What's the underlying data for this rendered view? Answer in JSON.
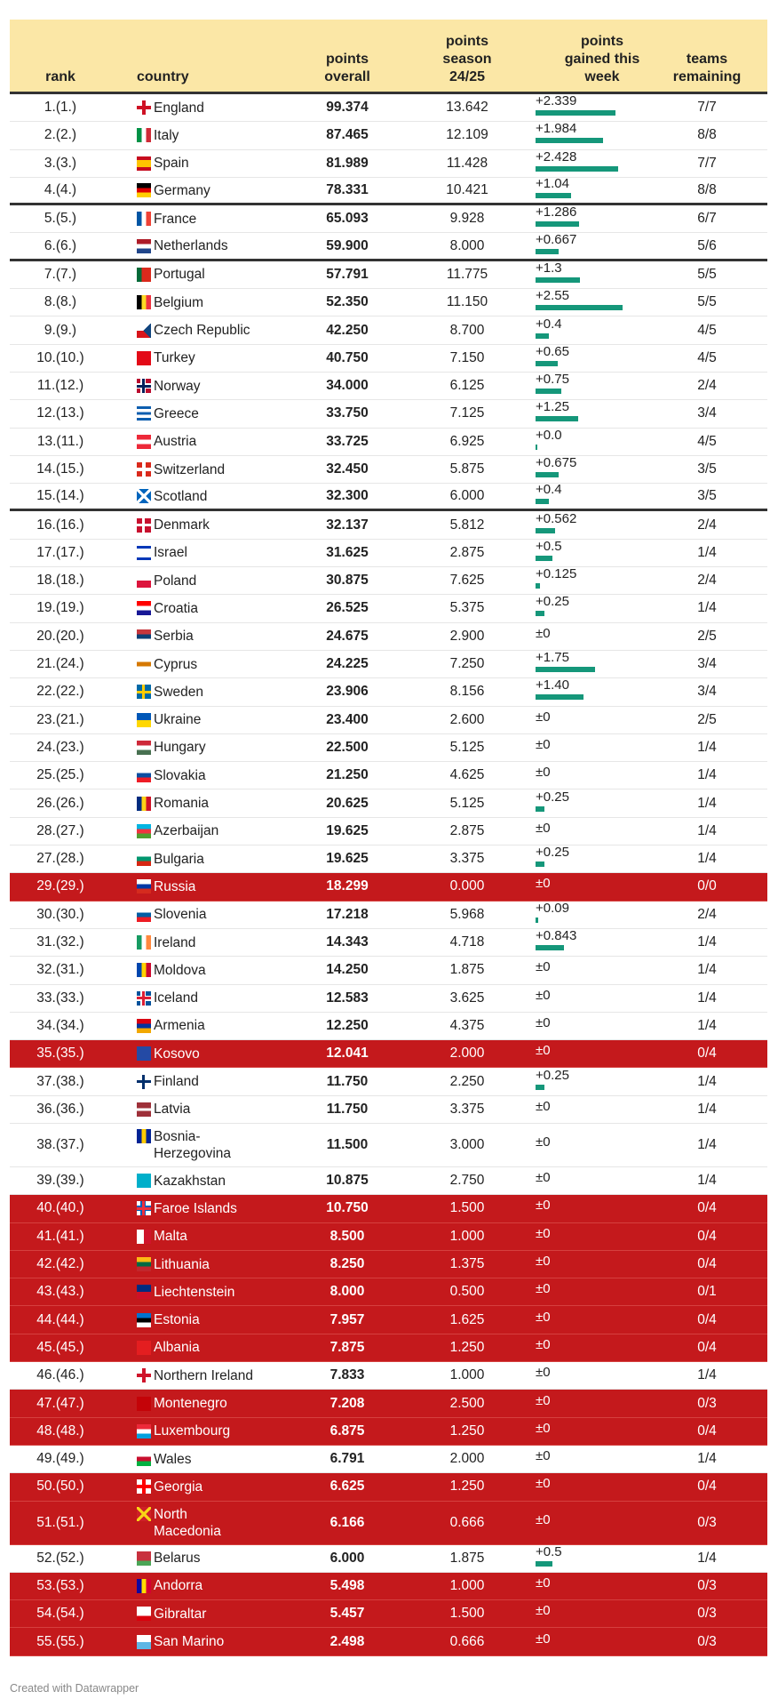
{
  "chart_data": {
    "type": "table",
    "columns": [
      "rank",
      "country",
      "points\noverall",
      "points\nseason\n24/25",
      "points\ngained this\nweek",
      "teams\nremaining"
    ],
    "accent_colors": {
      "header_bg": "#fbe7a6",
      "eliminated_row": "#c4191c",
      "bar": "#15977a"
    },
    "rows": [
      {
        "rank": "1.(1.)",
        "country": "England",
        "overall": "99.374",
        "season": "13.642",
        "gained": "+2.339",
        "teams": "7/7",
        "flag": {
          "type": "cross",
          "bg": "#ffffff",
          "fg": "#ce1124"
        }
      },
      {
        "rank": "2.(2.)",
        "country": "Italy",
        "overall": "87.465",
        "season": "12.109",
        "gained": "+1.984",
        "teams": "8/8",
        "flag": {
          "dir": "v",
          "colors": [
            "#009246",
            "#ffffff",
            "#ce2b37"
          ]
        }
      },
      {
        "rank": "3.(3.)",
        "country": "Spain",
        "overall": "81.989",
        "season": "11.428",
        "gained": "+2.428",
        "teams": "7/7",
        "flag": {
          "dir": "h",
          "colors": [
            "#c60b1e",
            "#ffc400",
            "#ffc400",
            "#c60b1e"
          ]
        }
      },
      {
        "rank": "4.(4.)",
        "country": "Germany",
        "overall": "78.331",
        "season": "10.421",
        "gained": "+1.04",
        "teams": "8/8",
        "sep": true,
        "flag": {
          "dir": "h",
          "colors": [
            "#000000",
            "#dd0000",
            "#ffce00"
          ]
        }
      },
      {
        "rank": "5.(5.)",
        "country": "France",
        "overall": "65.093",
        "season": "9.928",
        "gained": "+1.286",
        "teams": "6/7",
        "flag": {
          "dir": "v",
          "colors": [
            "#0055a4",
            "#ffffff",
            "#ef4135"
          ]
        }
      },
      {
        "rank": "6.(6.)",
        "country": "Netherlands",
        "overall": "59.900",
        "season": "8.000",
        "gained": "+0.667",
        "teams": "5/6",
        "sep": true,
        "flag": {
          "dir": "h",
          "colors": [
            "#ae1c28",
            "#ffffff",
            "#21468b"
          ]
        }
      },
      {
        "rank": "7.(7.)",
        "country": "Portugal",
        "overall": "57.791",
        "season": "11.775",
        "gained": "+1.3",
        "teams": "5/5",
        "flag": {
          "dir": "v",
          "colors": [
            "#046a38",
            "#da291c",
            "#da291c"
          ]
        }
      },
      {
        "rank": "8.(8.)",
        "country": "Belgium",
        "overall": "52.350",
        "season": "11.150",
        "gained": "+2.55",
        "teams": "5/5",
        "flag": {
          "dir": "v",
          "colors": [
            "#000000",
            "#fdda24",
            "#ef3340"
          ]
        }
      },
      {
        "rank": "9.(9.)",
        "country": "Czech Republic",
        "overall": "42.250",
        "season": "8.700",
        "gained": "+0.4",
        "teams": "4/5",
        "flag": {
          "dir": "h",
          "colors": [
            "#ffffff",
            "#d7141a"
          ],
          "tri": "#11457e"
        }
      },
      {
        "rank": "10.(10.)",
        "country": "Turkey",
        "overall": "40.750",
        "season": "7.150",
        "gained": "+0.65",
        "teams": "4/5",
        "flag": {
          "dir": "h",
          "colors": [
            "#e30a17"
          ]
        }
      },
      {
        "rank": "11.(12.)",
        "country": "Norway",
        "overall": "34.000",
        "season": "6.125",
        "gained": "+0.75",
        "teams": "2/4",
        "flag": {
          "type": "nordic",
          "bg": "#ba0c2f",
          "fg": "#00205b",
          "edge": "#ffffff"
        }
      },
      {
        "rank": "12.(13.)",
        "country": "Greece",
        "overall": "33.750",
        "season": "7.125",
        "gained": "+1.25",
        "teams": "3/4",
        "flag": {
          "dir": "h",
          "colors": [
            "#0d5eaf",
            "#ffffff",
            "#0d5eaf",
            "#ffffff",
            "#0d5eaf"
          ]
        }
      },
      {
        "rank": "13.(11.)",
        "country": "Austria",
        "overall": "33.725",
        "season": "6.925",
        "gained": "+0.0",
        "teams": "4/5",
        "flag": {
          "dir": "h",
          "colors": [
            "#ed2939",
            "#ffffff",
            "#ed2939"
          ]
        }
      },
      {
        "rank": "14.(15.)",
        "country": "Switzerland",
        "overall": "32.450",
        "season": "5.875",
        "gained": "+0.675",
        "teams": "3/5",
        "flag": {
          "type": "cross",
          "bg": "#da291c",
          "fg": "#ffffff"
        }
      },
      {
        "rank": "15.(14.)",
        "country": "Scotland",
        "overall": "32.300",
        "season": "6.000",
        "gained": "+0.4",
        "teams": "3/5",
        "sep": true,
        "flag": {
          "type": "saltire",
          "bg": "#0065bd",
          "fg": "#ffffff"
        }
      },
      {
        "rank": "16.(16.)",
        "country": "Denmark",
        "overall": "32.137",
        "season": "5.812",
        "gained": "+0.562",
        "teams": "2/4",
        "flag": {
          "type": "nordic",
          "bg": "#c8102e",
          "fg": "#ffffff"
        }
      },
      {
        "rank": "17.(17.)",
        "country": "Israel",
        "overall": "31.625",
        "season": "2.875",
        "gained": "+0.5",
        "teams": "1/4",
        "flag": {
          "dir": "h",
          "colors": [
            "#0038b8",
            "#ffffff",
            "#ffffff",
            "#ffffff",
            "#0038b8"
          ]
        }
      },
      {
        "rank": "18.(18.)",
        "country": "Poland",
        "overall": "30.875",
        "season": "7.625",
        "gained": "+0.125",
        "teams": "2/4",
        "flag": {
          "dir": "h",
          "colors": [
            "#ffffff",
            "#dc143c"
          ]
        }
      },
      {
        "rank": "19.(19.)",
        "country": "Croatia",
        "overall": "26.525",
        "season": "5.375",
        "gained": "+0.25",
        "teams": "1/4",
        "flag": {
          "dir": "h",
          "colors": [
            "#ff0000",
            "#ffffff",
            "#171796"
          ]
        }
      },
      {
        "rank": "20.(20.)",
        "country": "Serbia",
        "overall": "24.675",
        "season": "2.900",
        "gained": "±0",
        "teams": "2/5",
        "flag": {
          "dir": "h",
          "colors": [
            "#c6363c",
            "#0c4076",
            "#ffffff"
          ]
        }
      },
      {
        "rank": "21.(24.)",
        "country": "Cyprus",
        "overall": "24.225",
        "season": "7.250",
        "gained": "+1.75",
        "teams": "3/4",
        "flag": {
          "dir": "h",
          "colors": [
            "#ffffff",
            "#d57800",
            "#ffffff"
          ]
        }
      },
      {
        "rank": "22.(22.)",
        "country": "Sweden",
        "overall": "23.906",
        "season": "8.156",
        "gained": "+1.40",
        "teams": "3/4",
        "flag": {
          "type": "nordic",
          "bg": "#006aa7",
          "fg": "#fecc02"
        }
      },
      {
        "rank": "23.(21.)",
        "country": "Ukraine",
        "overall": "23.400",
        "season": "2.600",
        "gained": "±0",
        "teams": "2/5",
        "flag": {
          "dir": "h",
          "colors": [
            "#0057b7",
            "#ffd700"
          ]
        }
      },
      {
        "rank": "24.(23.)",
        "country": "Hungary",
        "overall": "22.500",
        "season": "5.125",
        "gained": "±0",
        "teams": "1/4",
        "flag": {
          "dir": "h",
          "colors": [
            "#ce2939",
            "#ffffff",
            "#477050"
          ]
        }
      },
      {
        "rank": "25.(25.)",
        "country": "Slovakia",
        "overall": "21.250",
        "season": "4.625",
        "gained": "±0",
        "teams": "1/4",
        "flag": {
          "dir": "h",
          "colors": [
            "#ffffff",
            "#0b4ea2",
            "#ee1c25"
          ]
        }
      },
      {
        "rank": "26.(26.)",
        "country": "Romania",
        "overall": "20.625",
        "season": "5.125",
        "gained": "+0.25",
        "teams": "1/4",
        "flag": {
          "dir": "v",
          "colors": [
            "#002b7f",
            "#fcd116",
            "#ce1126"
          ]
        }
      },
      {
        "rank": "28.(27.)",
        "country": "Azerbaijan",
        "overall": "19.625",
        "season": "2.875",
        "gained": "±0",
        "teams": "1/4",
        "flag": {
          "dir": "h",
          "colors": [
            "#00b5e2",
            "#ef3340",
            "#509e2f"
          ]
        }
      },
      {
        "rank": "27.(28.)",
        "country": "Bulgaria",
        "overall": "19.625",
        "season": "3.375",
        "gained": "+0.25",
        "teams": "1/4",
        "flag": {
          "dir": "h",
          "colors": [
            "#ffffff",
            "#00966e",
            "#d62612"
          ]
        }
      },
      {
        "rank": "29.(29.)",
        "country": "Russia",
        "overall": "18.299",
        "season": "0.000",
        "gained": "±0",
        "teams": "0/0",
        "elim": true,
        "flag": {
          "dir": "h",
          "colors": [
            "#ffffff",
            "#0039a6",
            "#d52b1e"
          ]
        }
      },
      {
        "rank": "30.(30.)",
        "country": "Slovenia",
        "overall": "17.218",
        "season": "5.968",
        "gained": "+0.09",
        "teams": "2/4",
        "flag": {
          "dir": "h",
          "colors": [
            "#ffffff",
            "#005da4",
            "#ed1c24"
          ]
        }
      },
      {
        "rank": "31.(32.)",
        "country": "Ireland",
        "overall": "14.343",
        "season": "4.718",
        "gained": "+0.843",
        "teams": "1/4",
        "flag": {
          "dir": "v",
          "colors": [
            "#169b62",
            "#ffffff",
            "#ff883e"
          ]
        }
      },
      {
        "rank": "32.(31.)",
        "country": "Moldova",
        "overall": "14.250",
        "season": "1.875",
        "gained": "±0",
        "teams": "1/4",
        "flag": {
          "dir": "v",
          "colors": [
            "#0046ae",
            "#ffd200",
            "#cc092f"
          ]
        }
      },
      {
        "rank": "33.(33.)",
        "country": "Iceland",
        "overall": "12.583",
        "season": "3.625",
        "gained": "±0",
        "teams": "1/4",
        "flag": {
          "type": "nordic",
          "bg": "#02529c",
          "fg": "#dc1e35",
          "edge": "#ffffff"
        }
      },
      {
        "rank": "34.(34.)",
        "country": "Armenia",
        "overall": "12.250",
        "season": "4.375",
        "gained": "±0",
        "teams": "1/4",
        "flag": {
          "dir": "h",
          "colors": [
            "#d90012",
            "#0033a0",
            "#f2a800"
          ]
        }
      },
      {
        "rank": "35.(35.)",
        "country": "Kosovo",
        "overall": "12.041",
        "season": "2.000",
        "gained": "±0",
        "teams": "0/4",
        "elim": true,
        "flag": {
          "dir": "h",
          "colors": [
            "#244aa5"
          ]
        }
      },
      {
        "rank": "37.(38.)",
        "country": "Finland",
        "overall": "11.750",
        "season": "2.250",
        "gained": "+0.25",
        "teams": "1/4",
        "flag": {
          "type": "nordic",
          "bg": "#ffffff",
          "fg": "#002f6c"
        }
      },
      {
        "rank": "36.(36.)",
        "country": "Latvia",
        "overall": "11.750",
        "season": "3.375",
        "gained": "±0",
        "teams": "1/4",
        "flag": {
          "dir": "h",
          "colors": [
            "#9e3039",
            "#9e3039",
            "#ffffff",
            "#9e3039",
            "#9e3039"
          ]
        }
      },
      {
        "rank": "38.(37.)",
        "country": "Bosnia-\nHerzegovina",
        "overall": "11.500",
        "season": "3.000",
        "gained": "±0",
        "teams": "1/4",
        "double": true,
        "flag": {
          "dir": "v",
          "colors": [
            "#002395",
            "#fecb00",
            "#002395"
          ]
        }
      },
      {
        "rank": "39.(39.)",
        "country": "Kazakhstan",
        "overall": "10.875",
        "season": "2.750",
        "gained": "±0",
        "teams": "1/4",
        "flag": {
          "dir": "h",
          "colors": [
            "#00afca"
          ]
        }
      },
      {
        "rank": "40.(40.)",
        "country": "Faroe Islands",
        "overall": "10.750",
        "season": "1.500",
        "gained": "±0",
        "teams": "0/4",
        "elim": true,
        "flag": {
          "type": "nordic",
          "bg": "#ffffff",
          "fg": "#ef303e",
          "edge": "#005eb8"
        }
      },
      {
        "rank": "41.(41.)",
        "country": "Malta",
        "overall": "8.500",
        "season": "1.000",
        "gained": "±0",
        "teams": "0/4",
        "elim": true,
        "flag": {
          "dir": "v",
          "colors": [
            "#ffffff",
            "#cf142b"
          ]
        }
      },
      {
        "rank": "42.(42.)",
        "country": "Lithuania",
        "overall": "8.250",
        "season": "1.375",
        "gained": "±0",
        "teams": "0/4",
        "elim": true,
        "flag": {
          "dir": "h",
          "colors": [
            "#fdb913",
            "#006a44",
            "#c1272d"
          ]
        }
      },
      {
        "rank": "43.(43.)",
        "country": "Liechtenstein",
        "overall": "8.000",
        "season": "0.500",
        "gained": "±0",
        "teams": "0/1",
        "elim": true,
        "flag": {
          "dir": "h",
          "colors": [
            "#002b7f",
            "#ce1126"
          ]
        }
      },
      {
        "rank": "44.(44.)",
        "country": "Estonia",
        "overall": "7.957",
        "season": "1.625",
        "gained": "±0",
        "teams": "0/4",
        "elim": true,
        "flag": {
          "dir": "h",
          "colors": [
            "#0072ce",
            "#000000",
            "#ffffff"
          ]
        }
      },
      {
        "rank": "45.(45.)",
        "country": "Albania",
        "overall": "7.875",
        "season": "1.250",
        "gained": "±0",
        "teams": "0/4",
        "elim": true,
        "flag": {
          "dir": "h",
          "colors": [
            "#e41e20"
          ]
        }
      },
      {
        "rank": "46.(46.)",
        "country": "Northern Ireland",
        "overall": "7.833",
        "season": "1.000",
        "gained": "±0",
        "teams": "1/4",
        "flag": {
          "type": "cross",
          "bg": "#ffffff",
          "fg": "#cf142b"
        }
      },
      {
        "rank": "47.(47.)",
        "country": "Montenegro",
        "overall": "7.208",
        "season": "2.500",
        "gained": "±0",
        "teams": "0/3",
        "elim": true,
        "flag": {
          "dir": "h",
          "colors": [
            "#c40308"
          ]
        }
      },
      {
        "rank": "48.(48.)",
        "country": "Luxembourg",
        "overall": "6.875",
        "season": "1.250",
        "gained": "±0",
        "teams": "0/4",
        "elim": true,
        "flag": {
          "dir": "h",
          "colors": [
            "#ed2939",
            "#ffffff",
            "#00a1de"
          ]
        }
      },
      {
        "rank": "49.(49.)",
        "country": "Wales",
        "overall": "6.791",
        "season": "2.000",
        "gained": "±0",
        "teams": "1/4",
        "flag": {
          "dir": "h",
          "colors": [
            "#ffffff",
            "#c8102e",
            "#00b140"
          ]
        }
      },
      {
        "rank": "50.(50.)",
        "country": "Georgia",
        "overall": "6.625",
        "season": "1.250",
        "gained": "±0",
        "teams": "0/4",
        "elim": true,
        "flag": {
          "type": "cross",
          "bg": "#ffffff",
          "fg": "#ff0000"
        }
      },
      {
        "rank": "51.(51.)",
        "country": "North\nMacedonia",
        "overall": "6.166",
        "season": "0.666",
        "gained": "±0",
        "teams": "0/3",
        "elim": true,
        "double": true,
        "flag": {
          "type": "saltire",
          "bg": "#ce2028",
          "fg": "#f9d616"
        }
      },
      {
        "rank": "52.(52.)",
        "country": "Belarus",
        "overall": "6.000",
        "season": "1.875",
        "gained": "+0.5",
        "teams": "1/4",
        "flag": {
          "dir": "h",
          "colors": [
            "#c8313e",
            "#c8313e",
            "#4aa657"
          ]
        }
      },
      {
        "rank": "53.(53.)",
        "country": "Andorra",
        "overall": "5.498",
        "season": "1.000",
        "gained": "±0",
        "teams": "0/3",
        "elim": true,
        "flag": {
          "dir": "v",
          "colors": [
            "#10069f",
            "#fedd00",
            "#d50032"
          ]
        }
      },
      {
        "rank": "54.(54.)",
        "country": "Gibraltar",
        "overall": "5.457",
        "season": "1.500",
        "gained": "±0",
        "teams": "0/3",
        "elim": true,
        "flag": {
          "dir": "h",
          "colors": [
            "#ffffff",
            "#ffffff",
            "#da000c"
          ]
        }
      },
      {
        "rank": "55.(55.)",
        "country": "San Marino",
        "overall": "2.498",
        "season": "0.666",
        "gained": "±0",
        "teams": "0/3",
        "elim": true,
        "flag": {
          "dir": "h",
          "colors": [
            "#ffffff",
            "#5eb6e4"
          ]
        }
      }
    ]
  },
  "footer": "Created with Datawrapper"
}
